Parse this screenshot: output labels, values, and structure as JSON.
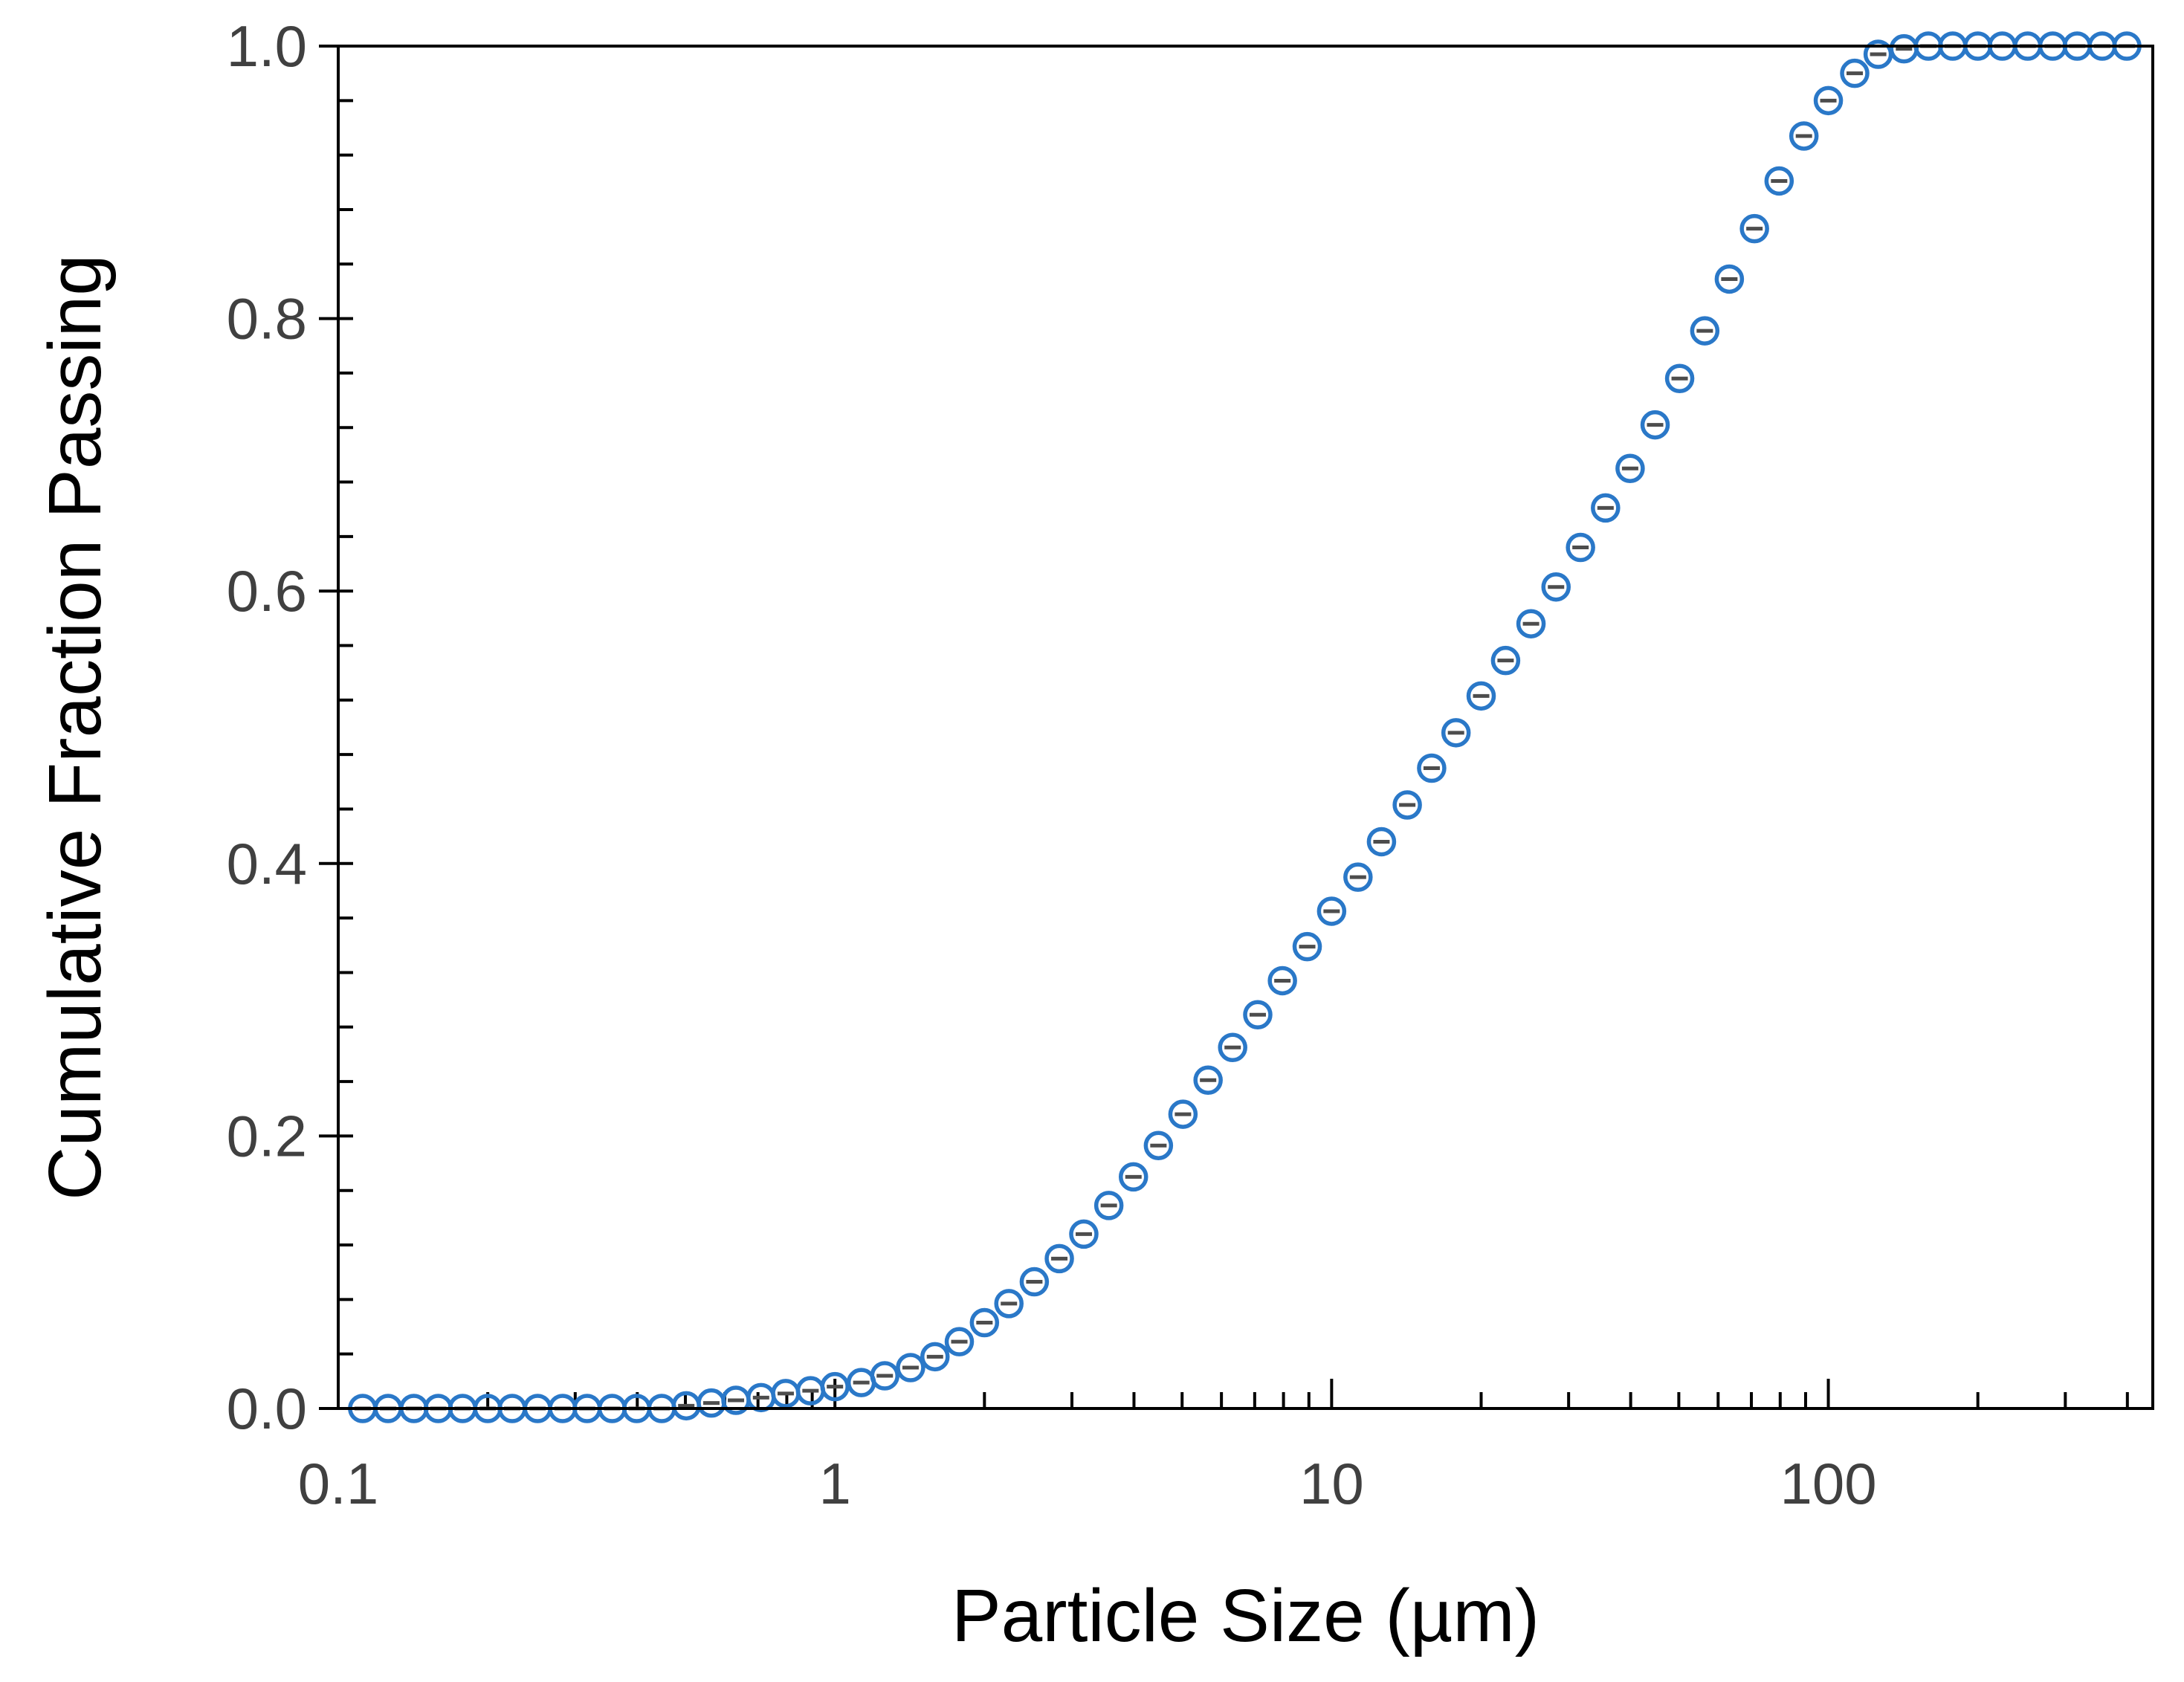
{
  "chart_data": {
    "type": "scatter",
    "title": "",
    "xlabel": "Particle Size (µm)",
    "ylabel": "Cumulative Fraction Passing",
    "xscale": "log",
    "xlim": [
      0.1,
      450
    ],
    "ylim": [
      0.0,
      1.0
    ],
    "x_ticks": [
      {
        "value": 0.1,
        "label": "0.1"
      },
      {
        "value": 1,
        "label": "1"
      },
      {
        "value": 10,
        "label": "10"
      },
      {
        "value": 100,
        "label": "100"
      }
    ],
    "y_ticks": [
      {
        "value": 0.0,
        "label": "0.0"
      },
      {
        "value": 0.2,
        "label": "0.2"
      },
      {
        "value": 0.4,
        "label": "0.4"
      },
      {
        "value": 0.6,
        "label": "0.6"
      },
      {
        "value": 0.8,
        "label": "0.8"
      },
      {
        "value": 1.0,
        "label": "1.0"
      }
    ],
    "y_minor_step": 0.04,
    "grid": false,
    "legend": "none",
    "marker_color": "#2a78c8",
    "errorbar_color": "#4d4d4d",
    "series": [
      {
        "name": "Cumulative fraction passing",
        "x": [
          0.112,
          0.126,
          0.142,
          0.159,
          0.178,
          0.2,
          0.224,
          0.252,
          0.283,
          0.317,
          0.356,
          0.399,
          0.448,
          0.502,
          0.564,
          0.632,
          0.71,
          0.796,
          0.893,
          1.0,
          1.13,
          1.26,
          1.42,
          1.59,
          1.78,
          2.0,
          2.24,
          2.52,
          2.83,
          3.17,
          3.56,
          3.99,
          4.48,
          5.02,
          5.64,
          6.32,
          7.1,
          7.96,
          8.93,
          10.0,
          11.3,
          12.6,
          14.2,
          15.9,
          17.8,
          20.0,
          22.4,
          25.2,
          28.3,
          31.7,
          35.6,
          39.9,
          44.8,
          50.2,
          56.4,
          63.2,
          71.0,
          79.6,
          89.3,
          100,
          113,
          126,
          142,
          159,
          178,
          200,
          224,
          252,
          283,
          317,
          356,
          399
        ],
        "y": [
          0.0,
          0.0,
          0.0,
          0.0,
          0.0,
          0.0,
          0.0,
          0.0,
          0.0,
          0.0,
          0.0,
          0.0,
          0.0,
          0.002,
          0.004,
          0.006,
          0.008,
          0.011,
          0.013,
          0.016,
          0.019,
          0.024,
          0.03,
          0.038,
          0.049,
          0.063,
          0.077,
          0.093,
          0.11,
          0.128,
          0.149,
          0.17,
          0.193,
          0.216,
          0.241,
          0.265,
          0.289,
          0.314,
          0.339,
          0.365,
          0.39,
          0.416,
          0.443,
          0.47,
          0.496,
          0.523,
          0.549,
          0.576,
          0.603,
          0.632,
          0.661,
          0.69,
          0.722,
          0.756,
          0.791,
          0.829,
          0.866,
          0.901,
          0.934,
          0.96,
          0.98,
          0.994,
          0.998,
          1.0,
          1.0,
          1.0,
          1.0,
          1.0,
          1.0,
          1.0,
          1.0,
          1.0
        ],
        "y_err": [
          0.0,
          0.0,
          0.0,
          0.0,
          0.0,
          0.0,
          0.0,
          0.0,
          0.0,
          0.0,
          0.0,
          0.0,
          0.0,
          0.0,
          0.0,
          0.0,
          0.0,
          0.0,
          0.0,
          0.0,
          0.0,
          0.0,
          0.0,
          0.0,
          0.0,
          0.0,
          0.0,
          0.0,
          0.0,
          0.0,
          0.0,
          0.0,
          0.0,
          0.0,
          0.0,
          0.0,
          0.0,
          0.0,
          0.0,
          0.0,
          0.0,
          0.0,
          0.0,
          0.0,
          0.0,
          0.0,
          0.0,
          0.0,
          0.0,
          0.0,
          0.0,
          0.0,
          0.0,
          0.0,
          0.0,
          0.0,
          0.0,
          0.0,
          0.0,
          0.0,
          0.0,
          0.0,
          0.0,
          0.0,
          0.0,
          0.0,
          0.0,
          0.0,
          0.0,
          0.0,
          0.0,
          0.0
        ]
      }
    ]
  }
}
